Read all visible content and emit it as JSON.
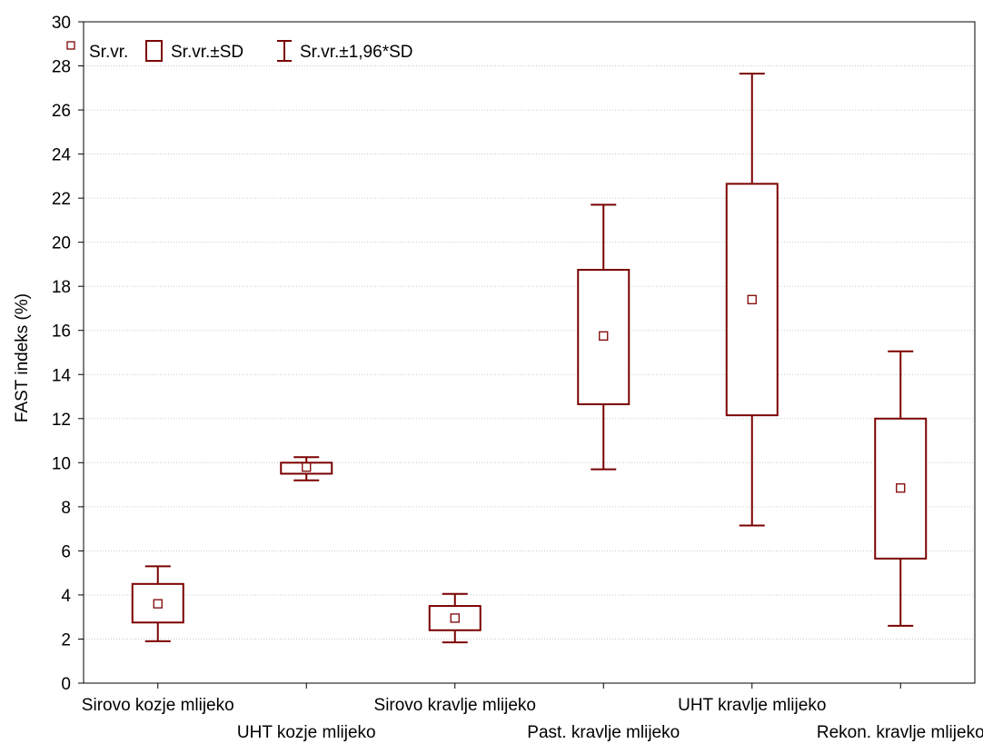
{
  "chart_data": {
    "type": "box",
    "ylabel": "FAST indeks (%)",
    "xlabel": "",
    "ylim": [
      0,
      30
    ],
    "yticks": [
      0,
      2,
      4,
      6,
      8,
      10,
      12,
      14,
      16,
      18,
      20,
      22,
      24,
      26,
      28,
      30
    ],
    "grid": true,
    "legend": {
      "placement": "top-left",
      "entries": [
        "Sr.vr.",
        "Sr.vr.±SD",
        "Sr.vr.±1,96*SD"
      ]
    },
    "series_color": "#7b0000",
    "categories": [
      "Sirovo kozje mlijeko",
      "UHT kozje mlijeko",
      "Sirovo kravlje mlijeko",
      "Past. kravlje mlijeko",
      "UHT kravlje mlijeko",
      "Rekon. kravlje mlijeko"
    ],
    "mean": [
      3.6,
      9.8,
      2.95,
      15.75,
      17.4,
      8.85
    ],
    "sd_low": [
      2.75,
      9.5,
      2.4,
      12.65,
      12.15,
      5.65
    ],
    "sd_high": [
      4.5,
      10.0,
      3.5,
      18.75,
      22.65,
      12.0
    ],
    "ci_low": [
      1.9,
      9.2,
      1.85,
      9.7,
      7.15,
      2.6
    ],
    "ci_high": [
      5.3,
      10.25,
      4.05,
      21.7,
      27.65,
      15.05
    ]
  }
}
